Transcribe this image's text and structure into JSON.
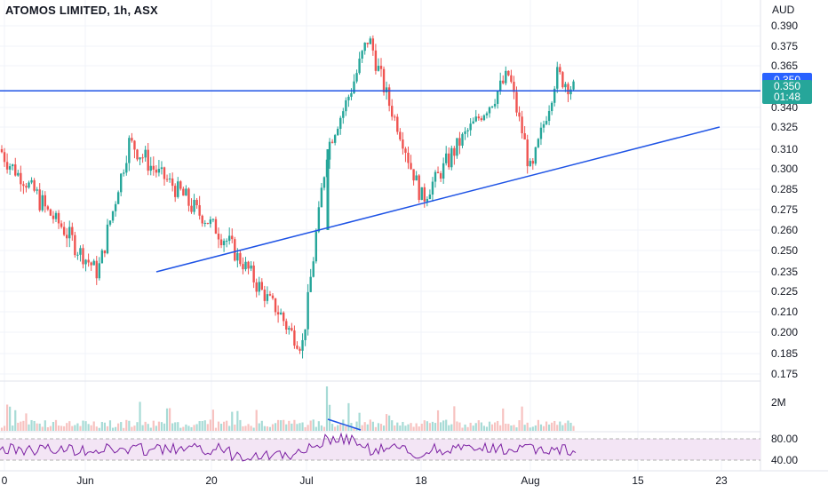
{
  "header": {
    "title": "ATOMOS LIMITED, 1h, ASX",
    "currency": "AUD"
  },
  "price_tags": {
    "last_price": "0.350",
    "candle_price": "0.350",
    "countdown": "01:48"
  },
  "colors": {
    "up": "#26a69a",
    "down": "#ef5350",
    "line": "#1e53e5",
    "rsi": "#7b1fa2",
    "rsi_band": "#f3e5f5"
  },
  "chart_data": [
    {
      "type": "candlestick",
      "name": "price",
      "y_ticks": [
        "0.390",
        "0.375",
        "0.365",
        "0.340",
        "0.325",
        "0.310",
        "0.300",
        "0.285",
        "0.275",
        "0.260",
        "0.250",
        "0.235",
        "0.225",
        "0.210",
        "0.200",
        "0.185",
        "0.175"
      ],
      "ylim": [
        0.17,
        0.395
      ],
      "x_ticks": [
        "0",
        "Jun",
        "20",
        "Jul",
        "18",
        "Aug",
        "15",
        "23"
      ],
      "horizontal_line": 0.35,
      "trendline": {
        "start": 0.235,
        "end": 0.325
      },
      "grid": true,
      "key_points": [
        {
          "label": "start",
          "y": 0.31
        },
        {
          "label": "late-May low",
          "y": 0.235
        },
        {
          "label": "early-June high",
          "y": 0.315
        },
        {
          "label": "June low",
          "y": 0.255
        },
        {
          "label": "late-June low",
          "y": 0.19
        },
        {
          "label": "breakout",
          "y": 0.31
        },
        {
          "label": "July high",
          "y": 0.381
        },
        {
          "label": "mid-July low",
          "y": 0.28
        },
        {
          "label": "late-July high",
          "y": 0.36
        },
        {
          "label": "early-Aug low",
          "y": 0.295
        },
        {
          "label": "Aug high",
          "y": 0.36
        },
        {
          "label": "last",
          "y": 0.35
        }
      ]
    },
    {
      "type": "bar",
      "name": "volume",
      "y_ticks": [
        "2M"
      ]
    },
    {
      "type": "line",
      "name": "RSI",
      "y_ticks": [
        "80.00",
        "40.00"
      ],
      "band": [
        40,
        80
      ]
    }
  ]
}
